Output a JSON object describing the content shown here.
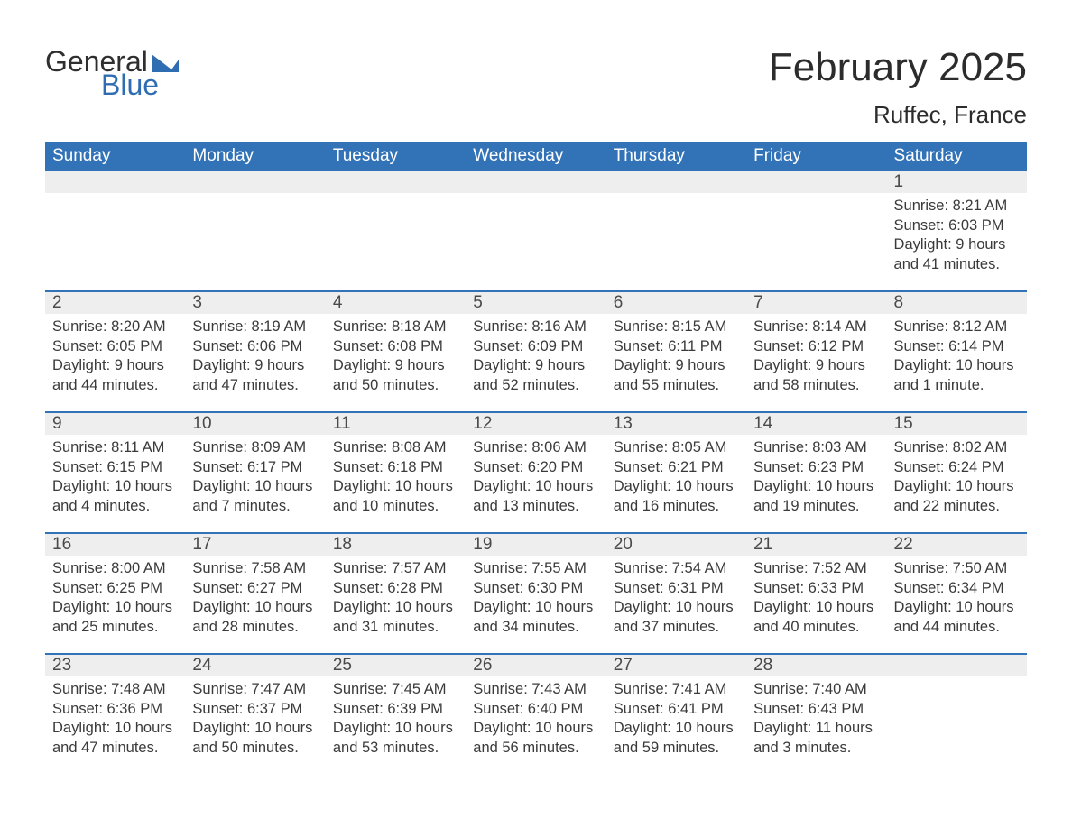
{
  "brand": {
    "word1": "General",
    "word2": "Blue",
    "accent_color": "#2f6db2"
  },
  "header": {
    "month_year": "February 2025",
    "location": "Ruffec, France"
  },
  "columns": [
    "Sunday",
    "Monday",
    "Tuesday",
    "Wednesday",
    "Thursday",
    "Friday",
    "Saturday"
  ],
  "colors": {
    "header_bg": "#3273b8",
    "header_text": "#ffffff",
    "daynum_bg": "#eeeeee",
    "separator": "#3273b8",
    "body_text": "#3a3a3a"
  },
  "weeks": [
    [
      null,
      null,
      null,
      null,
      null,
      null,
      {
        "n": "1",
        "sunrise": "Sunrise: 8:21 AM",
        "sunset": "Sunset: 6:03 PM",
        "daylight1": "Daylight: 9 hours",
        "daylight2": "and 41 minutes."
      }
    ],
    [
      {
        "n": "2",
        "sunrise": "Sunrise: 8:20 AM",
        "sunset": "Sunset: 6:05 PM",
        "daylight1": "Daylight: 9 hours",
        "daylight2": "and 44 minutes."
      },
      {
        "n": "3",
        "sunrise": "Sunrise: 8:19 AM",
        "sunset": "Sunset: 6:06 PM",
        "daylight1": "Daylight: 9 hours",
        "daylight2": "and 47 minutes."
      },
      {
        "n": "4",
        "sunrise": "Sunrise: 8:18 AM",
        "sunset": "Sunset: 6:08 PM",
        "daylight1": "Daylight: 9 hours",
        "daylight2": "and 50 minutes."
      },
      {
        "n": "5",
        "sunrise": "Sunrise: 8:16 AM",
        "sunset": "Sunset: 6:09 PM",
        "daylight1": "Daylight: 9 hours",
        "daylight2": "and 52 minutes."
      },
      {
        "n": "6",
        "sunrise": "Sunrise: 8:15 AM",
        "sunset": "Sunset: 6:11 PM",
        "daylight1": "Daylight: 9 hours",
        "daylight2": "and 55 minutes."
      },
      {
        "n": "7",
        "sunrise": "Sunrise: 8:14 AM",
        "sunset": "Sunset: 6:12 PM",
        "daylight1": "Daylight: 9 hours",
        "daylight2": "and 58 minutes."
      },
      {
        "n": "8",
        "sunrise": "Sunrise: 8:12 AM",
        "sunset": "Sunset: 6:14 PM",
        "daylight1": "Daylight: 10 hours",
        "daylight2": "and 1 minute."
      }
    ],
    [
      {
        "n": "9",
        "sunrise": "Sunrise: 8:11 AM",
        "sunset": "Sunset: 6:15 PM",
        "daylight1": "Daylight: 10 hours",
        "daylight2": "and 4 minutes."
      },
      {
        "n": "10",
        "sunrise": "Sunrise: 8:09 AM",
        "sunset": "Sunset: 6:17 PM",
        "daylight1": "Daylight: 10 hours",
        "daylight2": "and 7 minutes."
      },
      {
        "n": "11",
        "sunrise": "Sunrise: 8:08 AM",
        "sunset": "Sunset: 6:18 PM",
        "daylight1": "Daylight: 10 hours",
        "daylight2": "and 10 minutes."
      },
      {
        "n": "12",
        "sunrise": "Sunrise: 8:06 AM",
        "sunset": "Sunset: 6:20 PM",
        "daylight1": "Daylight: 10 hours",
        "daylight2": "and 13 minutes."
      },
      {
        "n": "13",
        "sunrise": "Sunrise: 8:05 AM",
        "sunset": "Sunset: 6:21 PM",
        "daylight1": "Daylight: 10 hours",
        "daylight2": "and 16 minutes."
      },
      {
        "n": "14",
        "sunrise": "Sunrise: 8:03 AM",
        "sunset": "Sunset: 6:23 PM",
        "daylight1": "Daylight: 10 hours",
        "daylight2": "and 19 minutes."
      },
      {
        "n": "15",
        "sunrise": "Sunrise: 8:02 AM",
        "sunset": "Sunset: 6:24 PM",
        "daylight1": "Daylight: 10 hours",
        "daylight2": "and 22 minutes."
      }
    ],
    [
      {
        "n": "16",
        "sunrise": "Sunrise: 8:00 AM",
        "sunset": "Sunset: 6:25 PM",
        "daylight1": "Daylight: 10 hours",
        "daylight2": "and 25 minutes."
      },
      {
        "n": "17",
        "sunrise": "Sunrise: 7:58 AM",
        "sunset": "Sunset: 6:27 PM",
        "daylight1": "Daylight: 10 hours",
        "daylight2": "and 28 minutes."
      },
      {
        "n": "18",
        "sunrise": "Sunrise: 7:57 AM",
        "sunset": "Sunset: 6:28 PM",
        "daylight1": "Daylight: 10 hours",
        "daylight2": "and 31 minutes."
      },
      {
        "n": "19",
        "sunrise": "Sunrise: 7:55 AM",
        "sunset": "Sunset: 6:30 PM",
        "daylight1": "Daylight: 10 hours",
        "daylight2": "and 34 minutes."
      },
      {
        "n": "20",
        "sunrise": "Sunrise: 7:54 AM",
        "sunset": "Sunset: 6:31 PM",
        "daylight1": "Daylight: 10 hours",
        "daylight2": "and 37 minutes."
      },
      {
        "n": "21",
        "sunrise": "Sunrise: 7:52 AM",
        "sunset": "Sunset: 6:33 PM",
        "daylight1": "Daylight: 10 hours",
        "daylight2": "and 40 minutes."
      },
      {
        "n": "22",
        "sunrise": "Sunrise: 7:50 AM",
        "sunset": "Sunset: 6:34 PM",
        "daylight1": "Daylight: 10 hours",
        "daylight2": "and 44 minutes."
      }
    ],
    [
      {
        "n": "23",
        "sunrise": "Sunrise: 7:48 AM",
        "sunset": "Sunset: 6:36 PM",
        "daylight1": "Daylight: 10 hours",
        "daylight2": "and 47 minutes."
      },
      {
        "n": "24",
        "sunrise": "Sunrise: 7:47 AM",
        "sunset": "Sunset: 6:37 PM",
        "daylight1": "Daylight: 10 hours",
        "daylight2": "and 50 minutes."
      },
      {
        "n": "25",
        "sunrise": "Sunrise: 7:45 AM",
        "sunset": "Sunset: 6:39 PM",
        "daylight1": "Daylight: 10 hours",
        "daylight2": "and 53 minutes."
      },
      {
        "n": "26",
        "sunrise": "Sunrise: 7:43 AM",
        "sunset": "Sunset: 6:40 PM",
        "daylight1": "Daylight: 10 hours",
        "daylight2": "and 56 minutes."
      },
      {
        "n": "27",
        "sunrise": "Sunrise: 7:41 AM",
        "sunset": "Sunset: 6:41 PM",
        "daylight1": "Daylight: 10 hours",
        "daylight2": "and 59 minutes."
      },
      {
        "n": "28",
        "sunrise": "Sunrise: 7:40 AM",
        "sunset": "Sunset: 6:43 PM",
        "daylight1": "Daylight: 11 hours",
        "daylight2": "and 3 minutes."
      },
      null
    ]
  ]
}
